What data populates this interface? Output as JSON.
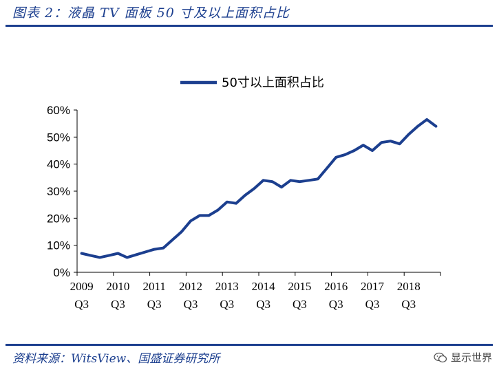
{
  "header": {
    "title": "图表 2：液晶 TV 面板 50 寸及以上面积占比"
  },
  "footer": {
    "source": "资料来源：WitsView、国盛证券研究所",
    "watermark": "显示世界"
  },
  "chart_data": {
    "type": "line",
    "series": [
      {
        "name": "50寸以上面积占比",
        "color": "#1c3f8f",
        "x": [
          "2009Q3",
          "2009Q4",
          "2010Q1",
          "2010Q2",
          "2010Q3",
          "2010Q4",
          "2011Q1",
          "2011Q2",
          "2011Q3",
          "2011Q4",
          "2012Q1",
          "2012Q2",
          "2012Q3",
          "2012Q4",
          "2013Q1",
          "2013Q2",
          "2013Q3",
          "2013Q4",
          "2014Q1",
          "2014Q2",
          "2014Q3",
          "2014Q4",
          "2015Q1",
          "2015Q2",
          "2015Q3",
          "2015Q4",
          "2016Q1",
          "2016Q2",
          "2016Q3",
          "2016Q4",
          "2017Q1",
          "2017Q2",
          "2017Q3",
          "2017Q4",
          "2018Q1",
          "2018Q2",
          "2018Q3",
          "2018Q4",
          "2019Q1",
          "2019Q2"
        ],
        "values": [
          7.0,
          6.2,
          5.5,
          6.2,
          7.0,
          5.5,
          6.5,
          7.5,
          8.5,
          9.0,
          12.0,
          15.0,
          19.0,
          21.0,
          21.0,
          23.0,
          26.0,
          25.5,
          28.5,
          31.0,
          34.0,
          33.5,
          31.5,
          34.0,
          33.5,
          34.0,
          34.5,
          38.5,
          42.5,
          43.5,
          45.0,
          47.0,
          45.0,
          48.0,
          48.5,
          47.5,
          51.0,
          54.0,
          56.5,
          54.0
        ]
      }
    ],
    "y_ticks": [
      "0%",
      "10%",
      "20%",
      "30%",
      "40%",
      "50%",
      "60%"
    ],
    "ylim": [
      0,
      60
    ],
    "x_tick_labels": [
      {
        "year": "2009",
        "quarter": "Q3"
      },
      {
        "year": "2010",
        "quarter": "Q3"
      },
      {
        "year": "2011",
        "quarter": "Q3"
      },
      {
        "year": "2012",
        "quarter": "Q3"
      },
      {
        "year": "2013",
        "quarter": "Q3"
      },
      {
        "year": "2014",
        "quarter": "Q3"
      },
      {
        "year": "2015",
        "quarter": "Q3"
      },
      {
        "year": "2016",
        "quarter": "Q3"
      },
      {
        "year": "2017",
        "quarter": "Q3"
      },
      {
        "year": "2018",
        "quarter": "Q3"
      }
    ],
    "legend_position": "top-center",
    "grid": false
  }
}
